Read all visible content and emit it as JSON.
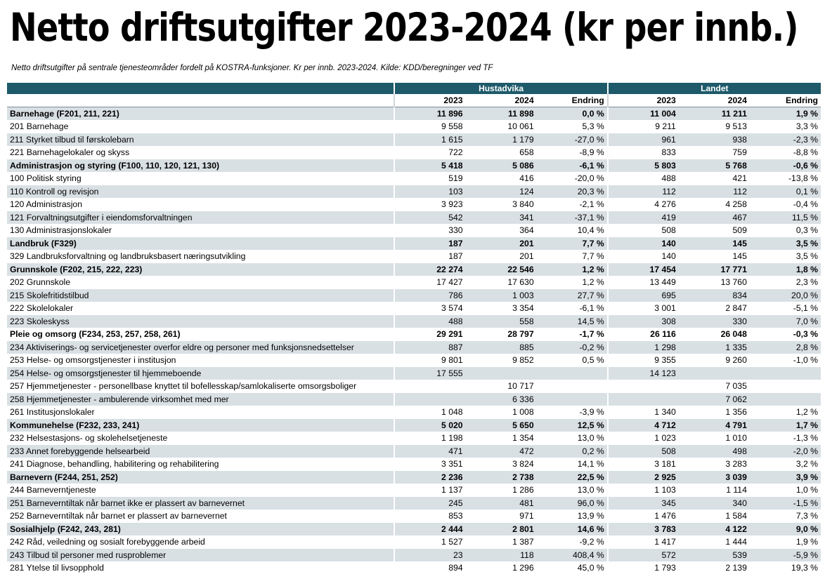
{
  "title": "Netto driftsutgifter 2023-2024 (kr per innb.)",
  "subtitle": "Netto driftsutgifter på sentrale tjenesteområder fordelt på KOSTRA-funksjoner. Kr per innb. 2023-2024. Kilde: KDD/beregninger ved TF",
  "table": {
    "groups": [
      "Hustadvika",
      "Landet"
    ],
    "columns": [
      "2023",
      "2024",
      "Endring",
      "2023",
      "2024",
      "Endring"
    ],
    "rows": [
      {
        "label": "Barnehage (F201, 211, 221)",
        "bold": true,
        "values": [
          "11 896",
          "11 898",
          "0,0 %",
          "11 004",
          "11 211",
          "1,9 %"
        ]
      },
      {
        "label": "201 Barnehage",
        "bold": false,
        "values": [
          "9 558",
          "10 061",
          "5,3 %",
          "9 211",
          "9 513",
          "3,3 %"
        ]
      },
      {
        "label": "211 Styrket tilbud til førskolebarn",
        "bold": false,
        "values": [
          "1 615",
          "1 179",
          "-27,0 %",
          "961",
          "938",
          "-2,3 %"
        ]
      },
      {
        "label": "221 Barnehagelokaler og skyss",
        "bold": false,
        "values": [
          "722",
          "658",
          "-8,9 %",
          "833",
          "759",
          "-8,8 %"
        ]
      },
      {
        "label": "Administrasjon og styring (F100, 110, 120, 121, 130)",
        "bold": true,
        "values": [
          "5 418",
          "5 086",
          "-6,1 %",
          "5 803",
          "5 768",
          "-0,6 %"
        ]
      },
      {
        "label": "100 Politisk styring",
        "bold": false,
        "values": [
          "519",
          "416",
          "-20,0 %",
          "488",
          "421",
          "-13,8 %"
        ]
      },
      {
        "label": "110 Kontroll og revisjon",
        "bold": false,
        "values": [
          "103",
          "124",
          "20,3 %",
          "112",
          "112",
          "0,1 %"
        ]
      },
      {
        "label": "120 Administrasjon",
        "bold": false,
        "values": [
          "3 923",
          "3 840",
          "-2,1 %",
          "4 276",
          "4 258",
          "-0,4 %"
        ]
      },
      {
        "label": "121 Forvaltningsutgifter i eiendomsforvaltningen",
        "bold": false,
        "values": [
          "542",
          "341",
          "-37,1 %",
          "419",
          "467",
          "11,5 %"
        ]
      },
      {
        "label": "130 Administrasjonslokaler",
        "bold": false,
        "values": [
          "330",
          "364",
          "10,4 %",
          "508",
          "509",
          "0,3 %"
        ]
      },
      {
        "label": "Landbruk (F329)",
        "bold": true,
        "values": [
          "187",
          "201",
          "7,7 %",
          "140",
          "145",
          "3,5 %"
        ]
      },
      {
        "label": "329 Landbruksforvaltning og landbruksbasert næringsutvikling",
        "bold": false,
        "values": [
          "187",
          "201",
          "7,7 %",
          "140",
          "145",
          "3,5 %"
        ]
      },
      {
        "label": "Grunnskole (F202, 215, 222, 223)",
        "bold": true,
        "values": [
          "22 274",
          "22 546",
          "1,2 %",
          "17 454",
          "17 771",
          "1,8 %"
        ]
      },
      {
        "label": "202 Grunnskole",
        "bold": false,
        "values": [
          "17 427",
          "17 630",
          "1,2 %",
          "13 449",
          "13 760",
          "2,3 %"
        ]
      },
      {
        "label": "215 Skolefritidstilbud",
        "bold": false,
        "values": [
          "786",
          "1 003",
          "27,7 %",
          "695",
          "834",
          "20,0 %"
        ]
      },
      {
        "label": "222 Skolelokaler",
        "bold": false,
        "values": [
          "3 574",
          "3 354",
          "-6,1 %",
          "3 001",
          "2 847",
          "-5,1 %"
        ]
      },
      {
        "label": "223 Skoleskyss",
        "bold": false,
        "values": [
          "488",
          "558",
          "14,5 %",
          "308",
          "330",
          "7,0 %"
        ]
      },
      {
        "label": "Pleie og omsorg (F234, 253, 257, 258, 261)",
        "bold": true,
        "values": [
          "29 291",
          "28 797",
          "-1,7 %",
          "26 116",
          "26 048",
          "-0,3 %"
        ]
      },
      {
        "label": "234 Aktiviserings- og servicetjenester overfor eldre og personer med funksjonsnedsettelser",
        "bold": false,
        "values": [
          "887",
          "885",
          "-0,2 %",
          "1 298",
          "1 335",
          "2,8 %"
        ]
      },
      {
        "label": "253 Helse- og omsorgstjenester i institusjon",
        "bold": false,
        "values": [
          "9 801",
          "9 852",
          "0,5 %",
          "9 355",
          "9 260",
          "-1,0 %"
        ]
      },
      {
        "label": "254 Helse- og omsorgstjenester til hjemmeboende",
        "bold": false,
        "values": [
          "17 555",
          "",
          "",
          "14 123",
          "",
          ""
        ]
      },
      {
        "label": "257 Hjemmetjenester - personellbase knyttet til bofellesskap/samlokaliserte omsorgsboliger",
        "bold": false,
        "values": [
          "",
          "10 717",
          "",
          "",
          "7 035",
          ""
        ]
      },
      {
        "label": "258 Hjemmetjenester - ambulerende virksomhet med mer",
        "bold": false,
        "values": [
          "",
          "6 336",
          "",
          "",
          "7 062",
          ""
        ]
      },
      {
        "label": "261 Institusjonslokaler",
        "bold": false,
        "values": [
          "1 048",
          "1 008",
          "-3,9 %",
          "1 340",
          "1 356",
          "1,2 %"
        ]
      },
      {
        "label": "Kommunehelse (F232, 233, 241)",
        "bold": true,
        "values": [
          "5 020",
          "5 650",
          "12,5 %",
          "4 712",
          "4 791",
          "1,7 %"
        ]
      },
      {
        "label": "232 Helsestasjons- og skolehelsetjeneste",
        "bold": false,
        "values": [
          "1 198",
          "1 354",
          "13,0 %",
          "1 023",
          "1 010",
          "-1,3 %"
        ]
      },
      {
        "label": "233 Annet forebyggende helsearbeid",
        "bold": false,
        "values": [
          "471",
          "472",
          "0,2 %",
          "508",
          "498",
          "-2,0 %"
        ]
      },
      {
        "label": "241 Diagnose, behandling, habilitering og rehabilitering",
        "bold": false,
        "values": [
          "3 351",
          "3 824",
          "14,1 %",
          "3 181",
          "3 283",
          "3,2 %"
        ]
      },
      {
        "label": "Barnevern (F244, 251, 252)",
        "bold": true,
        "values": [
          "2 236",
          "2 738",
          "22,5 %",
          "2 925",
          "3 039",
          "3,9 %"
        ]
      },
      {
        "label": "244 Barneverntjeneste",
        "bold": false,
        "values": [
          "1 137",
          "1 286",
          "13,0 %",
          "1 103",
          "1 114",
          "1,0 %"
        ]
      },
      {
        "label": "251 Barneverntiltak når barnet ikke er plassert av barnevernet",
        "bold": false,
        "values": [
          "245",
          "481",
          "96,0 %",
          "345",
          "340",
          "-1,5 %"
        ]
      },
      {
        "label": "252 Barneverntiltak når barnet er plassert av barnevernet",
        "bold": false,
        "values": [
          "853",
          "971",
          "13,9 %",
          "1 476",
          "1 584",
          "7,3 %"
        ]
      },
      {
        "label": "Sosialhjelp (F242, 243, 281)",
        "bold": true,
        "values": [
          "2 444",
          "2 801",
          "14,6 %",
          "3 783",
          "4 122",
          "9,0 %"
        ]
      },
      {
        "label": "242 Råd, veiledning og sosialt forebyggende arbeid",
        "bold": false,
        "values": [
          "1 527",
          "1 387",
          "-9,2 %",
          "1 417",
          "1 444",
          "1,9 %"
        ]
      },
      {
        "label": "243 Tilbud til personer med rusproblemer",
        "bold": false,
        "values": [
          "23",
          "118",
          "408,4 %",
          "572",
          "539",
          "-5,9 %"
        ]
      },
      {
        "label": "281 Ytelse til livsopphold",
        "bold": false,
        "values": [
          "894",
          "1 296",
          "45,0 %",
          "1 793",
          "2 139",
          "19,3 %"
        ]
      }
    ]
  }
}
